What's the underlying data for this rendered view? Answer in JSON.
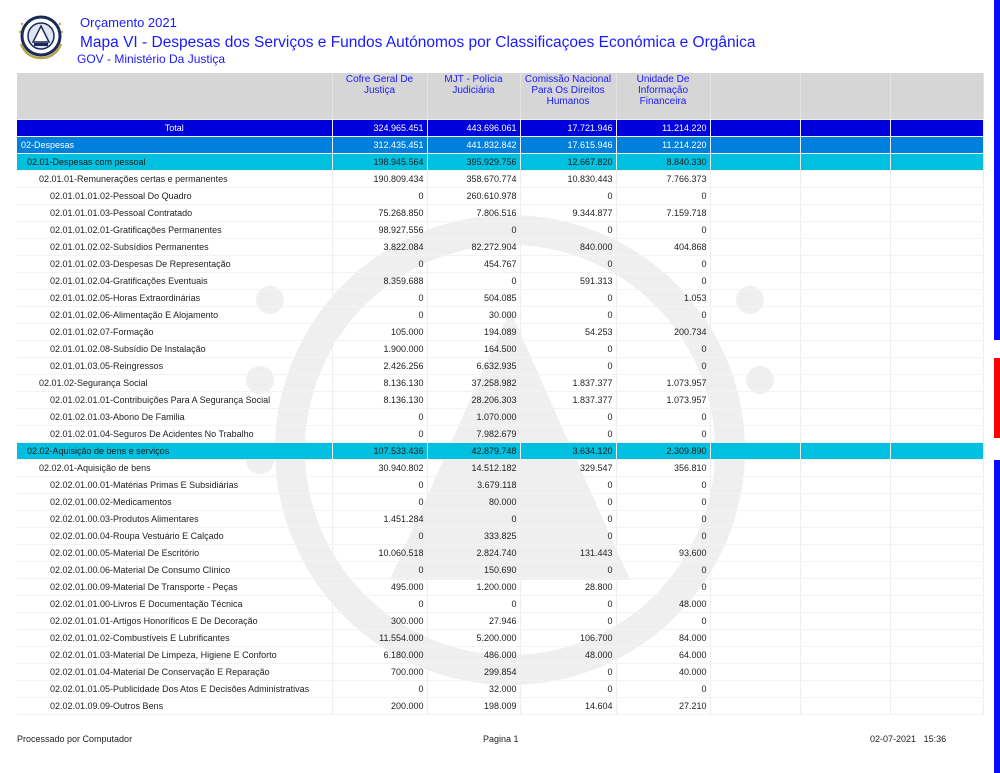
{
  "header": {
    "year_title": "Orçamento 2021",
    "report_title": "Mapa VI - Despesas dos Serviços e Fundos Autónomos por Classificaçoes Económica e Orgânica",
    "ministry": "GOV - Ministério Da Justiça"
  },
  "columns": [
    "Cofre Geral De Justiça",
    "MJT - Polícia Judiciária",
    "Comissão Nacional Para Os Direitos Humanos",
    "Unidade De Informação Financeira",
    "",
    "",
    ""
  ],
  "rows": [
    {
      "level": "total",
      "label": "Total",
      "values": [
        "324.965.451",
        "443.696.061",
        "17.721.946",
        "11.214.220"
      ]
    },
    {
      "level": "l1",
      "label": "02-Despesas",
      "values": [
        "312.435.451",
        "441.832.842",
        "17.615.946",
        "11.214.220"
      ]
    },
    {
      "level": "l2",
      "label": "02.01-Despesas com pessoal",
      "values": [
        "198.945.564",
        "395.929.756",
        "12.667.820",
        "8.840.330"
      ]
    },
    {
      "level": "l3",
      "label": "02.01.01-Remunerações certas e permanentes",
      "values": [
        "190.809.434",
        "358.670.774",
        "10.830.443",
        "7.766.373"
      ]
    },
    {
      "level": "l4",
      "label": "02.01.01.01.02-Pessoal Do Quadro",
      "values": [
        "0",
        "260.610.978",
        "0",
        "0"
      ]
    },
    {
      "level": "l4",
      "label": "02.01.01.01.03-Pessoal Contratado",
      "values": [
        "75.268.850",
        "7.806.516",
        "9.344.877",
        "7.159.718"
      ]
    },
    {
      "level": "l4",
      "label": "02.01.01.02.01-Gratificações Permanentes",
      "values": [
        "98.927.556",
        "0",
        "0",
        "0"
      ]
    },
    {
      "level": "l4",
      "label": "02.01.01.02.02-Subsídios Permanentes",
      "values": [
        "3.822.084",
        "82.272.904",
        "840.000",
        "404.868"
      ]
    },
    {
      "level": "l4",
      "label": "02.01.01.02.03-Despesas De Representação",
      "values": [
        "0",
        "454.767",
        "0",
        "0"
      ]
    },
    {
      "level": "l4",
      "label": "02.01.01.02.04-Gratificações Eventuais",
      "values": [
        "8.359.688",
        "0",
        "591.313",
        "0"
      ]
    },
    {
      "level": "l4",
      "label": "02.01.01.02.05-Horas Extraordinárias",
      "values": [
        "0",
        "504.085",
        "0",
        "1.053"
      ]
    },
    {
      "level": "l4",
      "label": "02.01.01.02.06-Alimentação E Alojamento",
      "values": [
        "0",
        "30.000",
        "0",
        "0"
      ]
    },
    {
      "level": "l4",
      "label": "02.01.01.02.07-Formação",
      "values": [
        "105.000",
        "194.089",
        "54.253",
        "200.734"
      ]
    },
    {
      "level": "l4",
      "label": "02.01.01.02.08-Subsídio De Instalação",
      "values": [
        "1.900.000",
        "164.500",
        "0",
        "0"
      ]
    },
    {
      "level": "l4",
      "label": "02.01.01.03.05-Reingressos",
      "values": [
        "2.426.256",
        "6.632.935",
        "0",
        "0"
      ]
    },
    {
      "level": "l3",
      "label": "02.01.02-Segurança Social",
      "values": [
        "8.136.130",
        "37.258.982",
        "1.837.377",
        "1.073.957"
      ]
    },
    {
      "level": "l4",
      "label": "02.01.02.01.01-Contribuições Para A Segurança Social",
      "values": [
        "8.136.130",
        "28.206.303",
        "1.837.377",
        "1.073.957"
      ]
    },
    {
      "level": "l4",
      "label": "02.01.02.01.03-Abono De Familia",
      "values": [
        "0",
        "1.070.000",
        "0",
        "0"
      ]
    },
    {
      "level": "l4",
      "label": "02.01.02.01.04-Seguros De Acidentes No Trabalho",
      "values": [
        "0",
        "7.982.679",
        "0",
        "0"
      ]
    },
    {
      "level": "l2",
      "label": "02.02-Aquisição de bens e serviços",
      "values": [
        "107.533.436",
        "42.879.748",
        "3.634.120",
        "2.309.890"
      ]
    },
    {
      "level": "l3",
      "label": "02.02.01-Aquisição de bens",
      "values": [
        "30.940.802",
        "14.512.182",
        "329.547",
        "356.810"
      ]
    },
    {
      "level": "l4",
      "label": "02.02.01.00.01-Matérias Primas E Subsidiárias",
      "values": [
        "0",
        "3.679.118",
        "0",
        "0"
      ]
    },
    {
      "level": "l4",
      "label": "02.02.01.00.02-Medicamentos",
      "values": [
        "0",
        "80.000",
        "0",
        "0"
      ]
    },
    {
      "level": "l4",
      "label": "02.02.01.00.03-Produtos Alimentares",
      "values": [
        "1.451.284",
        "0",
        "0",
        "0"
      ]
    },
    {
      "level": "l4",
      "label": "02.02.01.00.04-Roupa  Vestuário E Calçado",
      "values": [
        "0",
        "333.825",
        "0",
        "0"
      ]
    },
    {
      "level": "l4",
      "label": "02.02.01.00.05-Material De Escritório",
      "values": [
        "10.060.518",
        "2.824.740",
        "131.443",
        "93.600"
      ]
    },
    {
      "level": "l4",
      "label": "02.02.01.00.06-Material De Consumo Clínico",
      "values": [
        "0",
        "150.690",
        "0",
        "0"
      ]
    },
    {
      "level": "l4",
      "label": "02.02.01.00.09-Material De Transporte - Peças",
      "values": [
        "495.000",
        "1.200.000",
        "28.800",
        "0"
      ]
    },
    {
      "level": "l4",
      "label": "02.02.01.01.00-Livros E Documentação Técnica",
      "values": [
        "0",
        "0",
        "0",
        "48.000"
      ]
    },
    {
      "level": "l4",
      "label": "02.02.01.01.01-Artigos Honoríficos E De Decoração",
      "values": [
        "300.000",
        "27.946",
        "0",
        "0"
      ]
    },
    {
      "level": "l4",
      "label": "02.02.01.01.02-Combustíveis E Lubrificantes",
      "values": [
        "11.554.000",
        "5.200.000",
        "106.700",
        "84.000"
      ]
    },
    {
      "level": "l4",
      "label": "02.02.01.01.03-Material De Limpeza, Higiene E Conforto",
      "values": [
        "6.180.000",
        "486.000",
        "48.000",
        "64.000"
      ]
    },
    {
      "level": "l4",
      "label": "02.02.01.01.04-Material De Conservação E Reparação",
      "values": [
        "700.000",
        "299.854",
        "0",
        "40.000"
      ]
    },
    {
      "level": "l4",
      "label": "02.02.01.01.05-Publicidade Dos Atos E Decisões Administrativas",
      "values": [
        "0",
        "32.000",
        "0",
        "0"
      ]
    },
    {
      "level": "l4",
      "label": "02.02.01.09.09-Outros Bens",
      "values": [
        "200.000",
        "198.009",
        "14.604",
        "27.210"
      ]
    }
  ],
  "footer": {
    "left": "Processado por Computador",
    "center": "Pagina 1",
    "date": "02-07-2021",
    "time": "15:36"
  },
  "colors": {
    "total": "#0000dd",
    "level1": "#0080dd",
    "level2": "#00c0e0",
    "header_bg": "#d6d6d6",
    "title": "#1a1aff"
  }
}
